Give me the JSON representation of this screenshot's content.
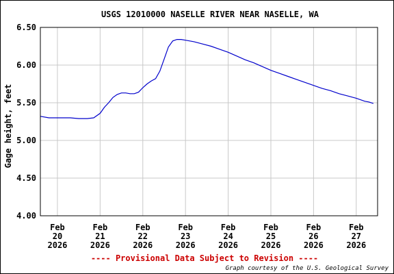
{
  "chart_data": {
    "type": "line",
    "title": "USGS 12010000 NASELLE RIVER NEAR NASELLE, WA",
    "ylabel": "Gage height, feet",
    "xlabel": "",
    "ylim": [
      4.0,
      6.5
    ],
    "yticks": [
      "4.00",
      "4.50",
      "5.00",
      "5.50",
      "6.00",
      "6.50"
    ],
    "x_range_days": [
      19.6,
      27.5
    ],
    "xticks": [
      {
        "day": 20,
        "month": "Feb",
        "date": "20",
        "year": "2026"
      },
      {
        "day": 21,
        "month": "Feb",
        "date": "21",
        "year": "2026"
      },
      {
        "day": 22,
        "month": "Feb",
        "date": "22",
        "year": "2026"
      },
      {
        "day": 23,
        "month": "Feb",
        "date": "23",
        "year": "2026"
      },
      {
        "day": 24,
        "month": "Feb",
        "date": "24",
        "year": "2026"
      },
      {
        "day": 25,
        "month": "Feb",
        "date": "25",
        "year": "2026"
      },
      {
        "day": 26,
        "month": "Feb",
        "date": "26",
        "year": "2026"
      },
      {
        "day": 27,
        "month": "Feb",
        "date": "27",
        "year": "2026"
      }
    ],
    "grid": true,
    "series": [
      {
        "color": "#0000cc",
        "points": [
          [
            19.6,
            5.32
          ],
          [
            19.8,
            5.3
          ],
          [
            20.0,
            5.3
          ],
          [
            20.3,
            5.3
          ],
          [
            20.5,
            5.29
          ],
          [
            20.7,
            5.29
          ],
          [
            20.85,
            5.3
          ],
          [
            21.0,
            5.36
          ],
          [
            21.1,
            5.44
          ],
          [
            21.2,
            5.5
          ],
          [
            21.3,
            5.57
          ],
          [
            21.4,
            5.61
          ],
          [
            21.5,
            5.63
          ],
          [
            21.6,
            5.63
          ],
          [
            21.7,
            5.62
          ],
          [
            21.8,
            5.62
          ],
          [
            21.9,
            5.64
          ],
          [
            22.0,
            5.7
          ],
          [
            22.1,
            5.75
          ],
          [
            22.2,
            5.79
          ],
          [
            22.3,
            5.82
          ],
          [
            22.4,
            5.92
          ],
          [
            22.5,
            6.08
          ],
          [
            22.6,
            6.24
          ],
          [
            22.7,
            6.32
          ],
          [
            22.8,
            6.34
          ],
          [
            22.9,
            6.34
          ],
          [
            23.0,
            6.33
          ],
          [
            23.2,
            6.31
          ],
          [
            23.4,
            6.28
          ],
          [
            23.6,
            6.25
          ],
          [
            23.8,
            6.21
          ],
          [
            24.0,
            6.17
          ],
          [
            24.2,
            6.12
          ],
          [
            24.4,
            6.07
          ],
          [
            24.6,
            6.03
          ],
          [
            24.8,
            5.98
          ],
          [
            25.0,
            5.93
          ],
          [
            25.2,
            5.89
          ],
          [
            25.4,
            5.85
          ],
          [
            25.6,
            5.81
          ],
          [
            25.8,
            5.77
          ],
          [
            26.0,
            5.73
          ],
          [
            26.2,
            5.69
          ],
          [
            26.4,
            5.66
          ],
          [
            26.6,
            5.62
          ],
          [
            26.8,
            5.59
          ],
          [
            27.0,
            5.56
          ],
          [
            27.2,
            5.52
          ],
          [
            27.3,
            5.51
          ],
          [
            27.4,
            5.49
          ]
        ]
      }
    ],
    "provisional_note": "---- Provisional Data Subject to Revision ----",
    "credit": "Graph courtesy of the U.S. Geological Survey",
    "colors": {
      "series": "#0000cc",
      "grid": "#c8c8c8",
      "note": "#cc0000",
      "border": "#000000"
    }
  }
}
